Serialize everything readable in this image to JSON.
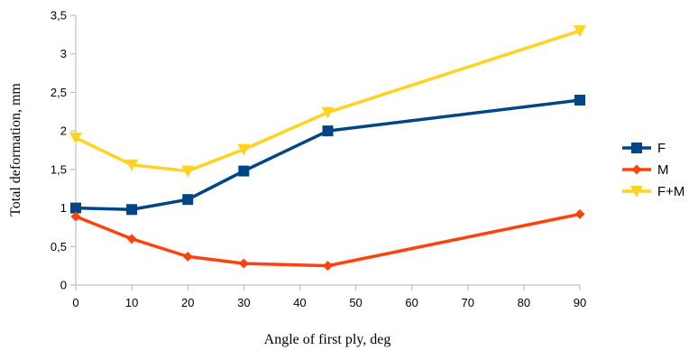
{
  "chart_data": {
    "type": "line",
    "title": "",
    "xlabel": "Angle of first ply, deg",
    "ylabel": "Total deformation, mm",
    "xlim": [
      0,
      90
    ],
    "ylim": [
      0,
      3.5
    ],
    "x_ticks": [
      "0",
      "10",
      "20",
      "30",
      "40",
      "50",
      "60",
      "70",
      "80",
      "90"
    ],
    "y_ticks": [
      "0",
      "0,5",
      "1",
      "1,5",
      "2",
      "2,5",
      "3",
      "3,5"
    ],
    "grid": false,
    "legend_position": "right",
    "series": [
      {
        "name": "F",
        "color": "#004586",
        "marker": "square",
        "x": [
          0,
          10,
          20,
          30,
          45,
          90
        ],
        "y": [
          1.0,
          0.98,
          1.11,
          1.48,
          2.0,
          2.4
        ]
      },
      {
        "name": "M",
        "color": "#ff420e",
        "marker": "diamond",
        "x": [
          0,
          10,
          20,
          30,
          45,
          90
        ],
        "y": [
          0.89,
          0.6,
          0.37,
          0.28,
          0.25,
          0.92
        ]
      },
      {
        "name": "F+M",
        "color": "#ffd320",
        "marker": "triangle-down",
        "x": [
          0,
          10,
          20,
          30,
          45,
          90
        ],
        "y": [
          1.91,
          1.56,
          1.48,
          1.76,
          2.24,
          3.3
        ]
      }
    ]
  }
}
